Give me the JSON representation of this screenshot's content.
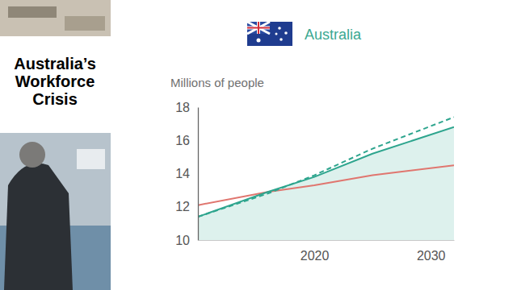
{
  "chart_data": {
    "type": "line",
    "title": "Australia",
    "ylabel": "Millions of people",
    "annotations": [
      "Australia’s Workforce Crisis"
    ],
    "x": [
      2010,
      2016,
      2020,
      2025,
      2032
    ],
    "xlim": [
      2010,
      2032
    ],
    "xticks": [
      2020,
      2030
    ],
    "ylim": [
      10,
      18
    ],
    "yticks": [
      10,
      12,
      14,
      16,
      18
    ],
    "grid": false,
    "series": [
      {
        "type": "line",
        "color": "#e0766f",
        "line_style": "solid",
        "values": [
          12.1,
          12.9,
          13.3,
          13.9,
          14.5
        ]
      },
      {
        "type": "area",
        "color": "#2ea58e",
        "line_style": "solid",
        "values": [
          11.4,
          12.9,
          13.8,
          15.2,
          16.8
        ]
      },
      {
        "type": "line",
        "color": "#2ea58e",
        "line_style": "dashed",
        "values": [
          11.4,
          12.8,
          13.9,
          15.5,
          17.4
        ]
      }
    ]
  }
}
